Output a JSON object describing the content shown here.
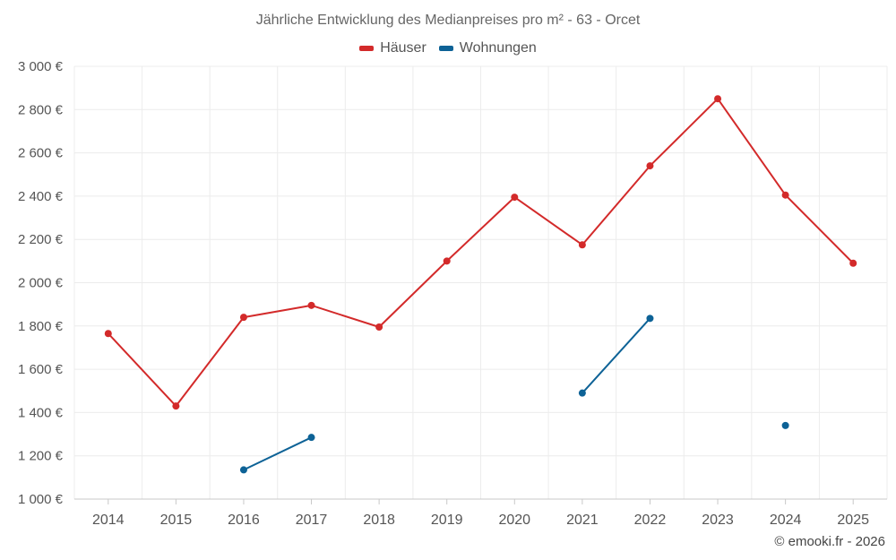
{
  "chart_data": {
    "type": "line",
    "title": "Jährliche Entwicklung des Medianpreises pro m² - 63 - Orcet",
    "categories": [
      "2014",
      "2015",
      "2016",
      "2017",
      "2018",
      "2019",
      "2020",
      "2021",
      "2022",
      "2023",
      "2024",
      "2025"
    ],
    "ylim": [
      1000,
      3000
    ],
    "yticks": [
      1000,
      1200,
      1400,
      1600,
      1800,
      2000,
      2200,
      2400,
      2600,
      2800,
      3000
    ],
    "ytick_labels": [
      "1 000 €",
      "1 200 €",
      "1 400 €",
      "1 600 €",
      "1 800 €",
      "2 000 €",
      "2 200 €",
      "2 400 €",
      "2 600 €",
      "2 800 €",
      "3 000 €"
    ],
    "grid": true,
    "legend_position": "top-center",
    "series": [
      {
        "name": "Häuser",
        "color": "#d32a2a",
        "values": [
          1765,
          1430,
          1840,
          1895,
          1795,
          2100,
          2395,
          2175,
          2540,
          2850,
          2405,
          2090
        ]
      },
      {
        "name": "Wohnungen",
        "color": "#0d6296",
        "values": [
          null,
          null,
          1135,
          1285,
          null,
          null,
          null,
          1490,
          1835,
          null,
          1340,
          null
        ]
      }
    ]
  },
  "credit": "© emooki.fr - 2026"
}
